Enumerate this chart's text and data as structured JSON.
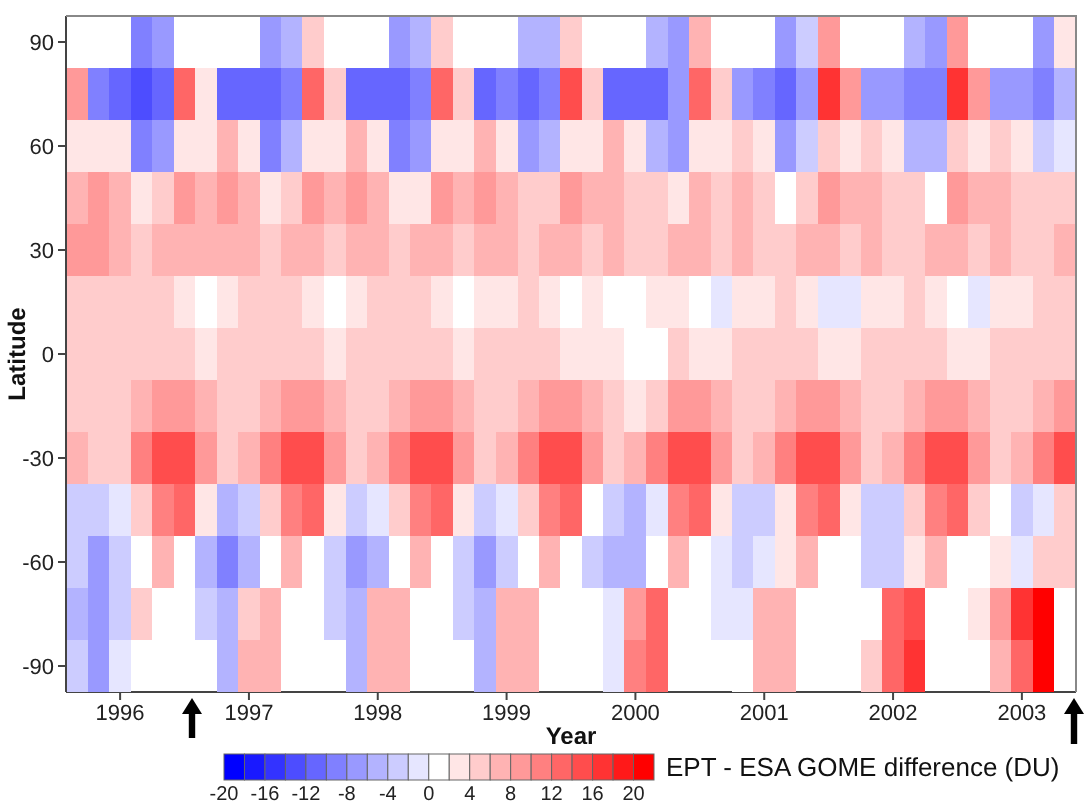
{
  "chart_data": {
    "type": "heatmap",
    "xlabel": "Year",
    "ylabel": "Latitude",
    "clabel": "EPT - ESA GOME difference (DU)",
    "x": [
      1995.67,
      1995.83,
      1996,
      1996.17,
      1996.33,
      1996.5,
      1996.67,
      1996.83,
      1997,
      1997.17,
      1997.33,
      1997.5,
      1997.67,
      1997.83,
      1998,
      1998.17,
      1998.33,
      1998.5,
      1998.67,
      1998.83,
      1999,
      1999.17,
      1999.33,
      1999.5,
      1999.67,
      1999.83,
      2000,
      2000.17,
      2000.33,
      2000.5,
      2000.67,
      2000.83,
      2001,
      2001.17,
      2001.33,
      2001.5,
      2001.67,
      2001.83,
      2002,
      2002.17,
      2002.33,
      2002.5,
      2002.67,
      2002.83,
      2003,
      2003.17,
      2003.33
    ],
    "xlim": [
      1995.58,
      2003.42
    ],
    "xticks": [
      1996,
      1997,
      1998,
      1999,
      2000,
      2001,
      2002,
      2003
    ],
    "y_categories": [
      "90",
      null,
      "60",
      null,
      "30",
      null,
      "0",
      null,
      "-30",
      null,
      "-60",
      null,
      "-90"
    ],
    "cells": [
      [
        null,
        null,
        null,
        -10,
        -8,
        0,
        null,
        null,
        null,
        -8,
        -6,
        4,
        null,
        null,
        null,
        -8,
        -6,
        4,
        null,
        null,
        null,
        -6,
        -6,
        4,
        null,
        null,
        null,
        -6,
        -8,
        6,
        null,
        null,
        null,
        -8,
        -4,
        8,
        null,
        null,
        null,
        -6,
        -8,
        8,
        null,
        null,
        null,
        -8,
        2
      ],
      [
        8,
        -10,
        -12,
        -14,
        -12,
        12,
        2,
        -12,
        -12,
        -12,
        -10,
        12,
        4,
        -12,
        -12,
        -12,
        -10,
        12,
        4,
        -12,
        -10,
        -12,
        -10,
        14,
        4,
        -12,
        -12,
        -12,
        -8,
        12,
        4,
        -8,
        -10,
        -12,
        -8,
        16,
        8,
        -8,
        -8,
        -10,
        -10,
        16,
        8,
        -8,
        -8,
        -10,
        -6
      ],
      [
        2,
        2,
        2,
        -10,
        -8,
        2,
        2,
        6,
        2,
        -10,
        -6,
        2,
        2,
        6,
        2,
        -10,
        -8,
        2,
        2,
        6,
        2,
        -8,
        -6,
        2,
        2,
        6,
        2,
        -6,
        -8,
        2,
        2,
        4,
        2,
        -8,
        -4,
        4,
        2,
        4,
        2,
        -6,
        -6,
        4,
        2,
        4,
        2,
        -4,
        -2
      ],
      [
        6,
        8,
        6,
        2,
        4,
        8,
        6,
        8,
        6,
        2,
        4,
        8,
        6,
        8,
        6,
        2,
        2,
        8,
        6,
        8,
        6,
        4,
        4,
        8,
        6,
        6,
        4,
        4,
        2,
        6,
        4,
        6,
        4,
        0,
        4,
        8,
        6,
        6,
        4,
        4,
        0,
        8,
        6,
        6,
        4,
        4,
        4
      ],
      [
        8,
        8,
        6,
        4,
        6,
        6,
        6,
        6,
        6,
        4,
        6,
        6,
        4,
        6,
        6,
        4,
        6,
        6,
        4,
        6,
        6,
        4,
        6,
        6,
        4,
        6,
        4,
        4,
        6,
        6,
        4,
        6,
        4,
        4,
        6,
        6,
        4,
        6,
        4,
        4,
        6,
        6,
        4,
        6,
        4,
        4,
        6
      ],
      [
        4,
        4,
        4,
        4,
        4,
        2,
        0,
        2,
        4,
        4,
        4,
        2,
        0,
        2,
        4,
        4,
        4,
        2,
        0,
        2,
        2,
        4,
        2,
        0,
        2,
        0,
        0,
        2,
        2,
        0,
        -2,
        2,
        2,
        4,
        2,
        -2,
        -2,
        2,
        2,
        4,
        2,
        0,
        -2,
        2,
        2,
        4,
        4
      ],
      [
        4,
        4,
        4,
        4,
        4,
        4,
        2,
        4,
        4,
        4,
        4,
        4,
        2,
        4,
        4,
        4,
        4,
        4,
        2,
        4,
        4,
        4,
        4,
        2,
        2,
        2,
        0,
        0,
        4,
        2,
        2,
        4,
        4,
        4,
        4,
        2,
        2,
        4,
        4,
        4,
        4,
        2,
        2,
        4,
        4,
        4,
        4
      ],
      [
        4,
        4,
        4,
        6,
        8,
        8,
        6,
        4,
        4,
        6,
        8,
        8,
        6,
        4,
        4,
        6,
        8,
        8,
        6,
        4,
        4,
        6,
        8,
        8,
        6,
        4,
        2,
        4,
        8,
        8,
        6,
        4,
        4,
        6,
        8,
        8,
        6,
        4,
        4,
        6,
        8,
        8,
        6,
        4,
        4,
        6,
        8
      ],
      [
        6,
        4,
        4,
        10,
        14,
        14,
        8,
        4,
        6,
        10,
        14,
        14,
        8,
        4,
        6,
        10,
        14,
        14,
        8,
        4,
        6,
        10,
        14,
        14,
        8,
        4,
        6,
        10,
        14,
        14,
        8,
        4,
        6,
        10,
        14,
        14,
        8,
        4,
        6,
        10,
        14,
        14,
        8,
        4,
        6,
        10,
        14
      ],
      [
        -4,
        -4,
        -2,
        4,
        10,
        12,
        2,
        -6,
        -4,
        4,
        10,
        12,
        2,
        -4,
        -2,
        4,
        10,
        12,
        2,
        -4,
        -2,
        4,
        10,
        12,
        0,
        -4,
        -6,
        -2,
        10,
        12,
        2,
        -4,
        -4,
        2,
        10,
        12,
        2,
        -4,
        -4,
        4,
        10,
        12,
        4,
        0,
        -4,
        -2,
        4
      ],
      [
        -4,
        -8,
        -4,
        0,
        6,
        null,
        -6,
        -10,
        -6,
        0,
        6,
        null,
        -4,
        -8,
        -6,
        0,
        6,
        null,
        -4,
        -8,
        -4,
        0,
        6,
        null,
        -4,
        -6,
        -6,
        0,
        6,
        null,
        -2,
        -4,
        -2,
        2,
        6,
        null,
        0,
        -4,
        -4,
        2,
        6,
        null,
        0,
        2,
        -2,
        4,
        4
      ],
      [
        -6,
        -8,
        -4,
        4,
        null,
        null,
        -4,
        -6,
        4,
        6,
        null,
        null,
        -4,
        -6,
        6,
        6,
        null,
        null,
        -4,
        -6,
        6,
        6,
        null,
        null,
        0,
        -2,
        8,
        12,
        null,
        null,
        -2,
        -2,
        6,
        6,
        null,
        null,
        0,
        0,
        12,
        14,
        null,
        null,
        2,
        8,
        16,
        20,
        null
      ],
      [
        -4,
        -8,
        -2,
        null,
        null,
        null,
        null,
        -6,
        6,
        6,
        null,
        null,
        null,
        -6,
        6,
        6,
        null,
        null,
        null,
        -6,
        6,
        6,
        null,
        null,
        null,
        -2,
        10,
        12,
        null,
        null,
        null,
        0,
        6,
        6,
        null,
        null,
        null,
        4,
        12,
        16,
        null,
        null,
        null,
        6,
        12,
        20,
        null
      ]
    ],
    "clim": [
      -20,
      22
    ],
    "cticks": [
      -20,
      -16,
      -12,
      -8,
      -4,
      0,
      4,
      8,
      12,
      16,
      20
    ]
  }
}
